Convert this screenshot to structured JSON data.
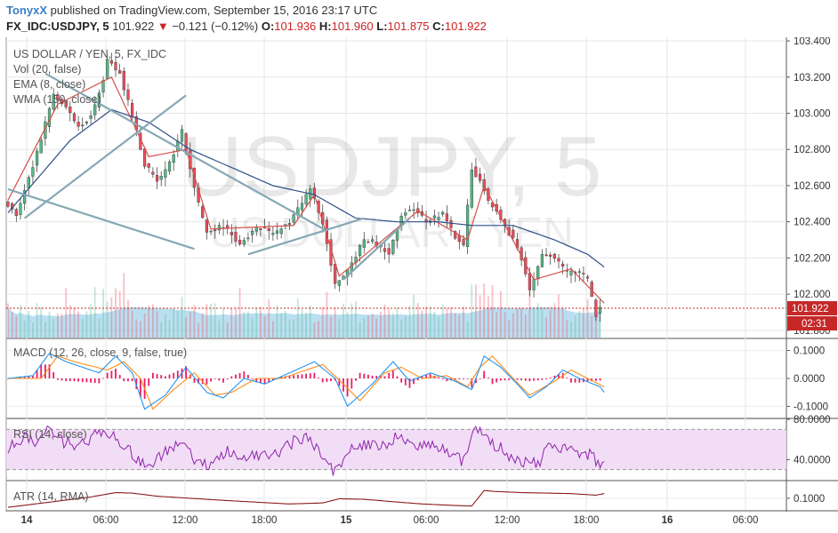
{
  "header": {
    "author": "TonyxX",
    "published_text": "published on TradingView.com, September 15, 2016 23:17 UTC",
    "symbol": "FX_IDC:USDJPY, 5",
    "last": "101.922",
    "change_arrow": "▼",
    "change": "−0.121 (−0.12%)",
    "open_label": "O:",
    "open": "101.936",
    "high_label": "H:",
    "high": "101.960",
    "low_label": "L:",
    "low": "101.875",
    "close_label": "C:",
    "close": "101.922"
  },
  "watermark": {
    "symbol": "USDJPY, 5",
    "name": "US DOLLAR / YEN"
  },
  "legend": {
    "title": "US DOLLAR / YEN, 5, FX_IDC",
    "vol": "Vol (20, false)",
    "ema": "EMA (8, close)",
    "wma": "WMA (150, close)"
  },
  "indicators": {
    "macd": "MACD (12, 26, close, 9, false, true)",
    "rsi": "RSI (14, close)",
    "atr": "ATR (14, RMA)"
  },
  "price_tag": {
    "value": "101.922",
    "countdown": "02:31"
  },
  "colors": {
    "up": "#53b987",
    "down": "#eb4d5c",
    "volume": "#8ec9ea",
    "ema": "#d5504b",
    "wma": "#2f4f88",
    "trend": "#85a8b4",
    "macd": "#2196f3",
    "signal": "#ff8c1a",
    "hist": "#e91e63",
    "rsi": "#8e24aa",
    "rsi_band": "#f1d9f5",
    "atr": "#8b1a1a",
    "last_price": "#c62828"
  },
  "chart_data": [
    {
      "type": "candlestick",
      "title": "US DOLLAR / YEN, 5, FX_IDC",
      "y_ticks": [
        "103.400",
        "103.200",
        "103.000",
        "102.800",
        "102.600",
        "102.400",
        "102.200",
        "102.000",
        "101.800"
      ],
      "ylim": [
        101.76,
        103.42
      ],
      "x_ticks": [
        "14",
        "06:00",
        "12:00",
        "18:00",
        "15",
        "06:00",
        "12:00",
        "18:00",
        "16",
        "06:00"
      ],
      "last_price": 101.922,
      "path": [
        [
          0,
          102.52
        ],
        [
          3,
          102.44
        ],
        [
          8,
          102.78
        ],
        [
          12,
          103.1
        ],
        [
          15,
          103.04
        ],
        [
          18,
          102.92
        ],
        [
          21,
          102.98
        ],
        [
          24,
          103.18
        ],
        [
          25,
          103.3
        ],
        [
          28,
          103.22
        ],
        [
          31,
          102.98
        ],
        [
          34,
          102.72
        ],
        [
          37,
          102.62
        ],
        [
          40,
          102.72
        ],
        [
          43,
          102.9
        ],
        [
          46,
          102.58
        ],
        [
          49,
          102.33
        ],
        [
          53,
          102.38
        ],
        [
          57,
          102.28
        ],
        [
          61,
          102.37
        ],
        [
          65,
          102.33
        ],
        [
          69,
          102.4
        ],
        [
          72,
          102.5
        ],
        [
          74,
          102.58
        ],
        [
          77,
          102.4
        ],
        [
          80,
          102.06
        ],
        [
          83,
          102.12
        ],
        [
          87,
          102.3
        ],
        [
          90,
          102.28
        ],
        [
          93,
          102.22
        ],
        [
          96,
          102.44
        ],
        [
          99,
          102.48
        ],
        [
          102,
          102.4
        ],
        [
          106,
          102.44
        ],
        [
          109,
          102.32
        ],
        [
          111,
          102.26
        ],
        [
          113,
          102.7
        ],
        [
          115,
          102.62
        ],
        [
          117,
          102.52
        ],
        [
          120,
          102.42
        ],
        [
          123,
          102.3
        ],
        [
          125,
          102.2
        ],
        [
          127,
          102.02
        ],
        [
          130,
          102.23
        ],
        [
          133,
          102.2
        ],
        [
          136,
          102.12
        ],
        [
          139,
          102.12
        ],
        [
          141,
          102.08
        ],
        [
          143,
          101.88
        ],
        [
          144,
          101.922
        ]
      ],
      "ema_path": [
        [
          0,
          102.52
        ],
        [
          12,
          103.05
        ],
        [
          25,
          103.2
        ],
        [
          34,
          102.76
        ],
        [
          43,
          102.8
        ],
        [
          49,
          102.36
        ],
        [
          69,
          102.38
        ],
        [
          74,
          102.55
        ],
        [
          80,
          102.1
        ],
        [
          99,
          102.46
        ],
        [
          111,
          102.3
        ],
        [
          115,
          102.6
        ],
        [
          127,
          102.08
        ],
        [
          136,
          102.14
        ],
        [
          144,
          101.95
        ]
      ],
      "wma_path": [
        [
          0,
          102.45
        ],
        [
          15,
          102.85
        ],
        [
          25,
          103.02
        ],
        [
          34,
          102.95
        ],
        [
          44,
          102.8
        ],
        [
          54,
          102.7
        ],
        [
          64,
          102.6
        ],
        [
          74,
          102.55
        ],
        [
          84,
          102.42
        ],
        [
          94,
          102.4
        ],
        [
          104,
          102.4
        ],
        [
          112,
          102.38
        ],
        [
          122,
          102.38
        ],
        [
          132,
          102.3
        ],
        [
          140,
          102.22
        ],
        [
          144,
          102.15
        ]
      ],
      "trendlines": [
        {
          "from": [
            0,
            102.58
          ],
          "to": [
            45,
            102.25
          ]
        },
        {
          "from": [
            4,
            102.42
          ],
          "to": [
            43,
            103.1
          ]
        },
        {
          "from": [
            9,
            103.22
          ],
          "to": [
            77,
            102.35
          ]
        },
        {
          "from": [
            58,
            102.22
          ],
          "to": [
            86,
            102.42
          ]
        },
        {
          "from": [
            81,
            102.08
          ],
          "to": [
            97,
            102.42
          ]
        }
      ]
    },
    {
      "type": "line",
      "title": "MACD (12, 26, close, 9, false, true)",
      "y_ticks": [
        "0.1000",
        "0.0000",
        "-0.1000"
      ],
      "ylim": [
        -0.14,
        0.14
      ],
      "macd_path": [
        [
          0,
          0.0
        ],
        [
          6,
          0.01
        ],
        [
          10,
          0.09
        ],
        [
          14,
          0.06
        ],
        [
          22,
          0.02
        ],
        [
          26,
          0.08
        ],
        [
          30,
          0.02
        ],
        [
          33,
          -0.11
        ],
        [
          38,
          -0.06
        ],
        [
          43,
          0.04
        ],
        [
          48,
          -0.05
        ],
        [
          52,
          -0.07
        ],
        [
          57,
          0.0
        ],
        [
          62,
          -0.02
        ],
        [
          68,
          0.02
        ],
        [
          74,
          0.06
        ],
        [
          79,
          0.0
        ],
        [
          82,
          -0.1
        ],
        [
          88,
          -0.02
        ],
        [
          93,
          0.06
        ],
        [
          97,
          -0.01
        ],
        [
          102,
          0.02
        ],
        [
          108,
          -0.01
        ],
        [
          112,
          -0.04
        ],
        [
          115,
          0.08
        ],
        [
          119,
          0.04
        ],
        [
          123,
          -0.02
        ],
        [
          126,
          -0.07
        ],
        [
          130,
          -0.03
        ],
        [
          134,
          0.03
        ],
        [
          138,
          0.0
        ],
        [
          143,
          -0.03
        ],
        [
          144,
          -0.05
        ]
      ],
      "signal_path": [
        [
          0,
          0.0
        ],
        [
          8,
          0.0
        ],
        [
          12,
          0.08
        ],
        [
          16,
          0.06
        ],
        [
          24,
          0.03
        ],
        [
          28,
          0.06
        ],
        [
          32,
          0.0
        ],
        [
          35,
          -0.11
        ],
        [
          40,
          -0.04
        ],
        [
          45,
          0.02
        ],
        [
          50,
          -0.06
        ],
        [
          54,
          -0.05
        ],
        [
          60,
          0.0
        ],
        [
          66,
          0.0
        ],
        [
          72,
          0.03
        ],
        [
          76,
          0.05
        ],
        [
          81,
          -0.02
        ],
        [
          85,
          -0.08
        ],
        [
          91,
          0.02
        ],
        [
          95,
          0.04
        ],
        [
          100,
          0.0
        ],
        [
          106,
          0.01
        ],
        [
          111,
          -0.03
        ],
        [
          114,
          0.04
        ],
        [
          117,
          0.08
        ],
        [
          122,
          0.0
        ],
        [
          126,
          -0.06
        ],
        [
          132,
          -0.01
        ],
        [
          136,
          0.03
        ],
        [
          140,
          0.0
        ],
        [
          144,
          -0.03
        ]
      ]
    },
    {
      "type": "line",
      "title": "RSI (14, close)",
      "y_ticks": [
        "80.0000",
        "40.0000"
      ],
      "ylim": [
        20,
        80
      ],
      "band": [
        30,
        70
      ],
      "rsi_path": [
        [
          0,
          50
        ],
        [
          4,
          62
        ],
        [
          7,
          56
        ],
        [
          10,
          72
        ],
        [
          13,
          58
        ],
        [
          17,
          54
        ],
        [
          21,
          64
        ],
        [
          24,
          68
        ],
        [
          27,
          58
        ],
        [
          31,
          42
        ],
        [
          34,
          30
        ],
        [
          38,
          48
        ],
        [
          42,
          60
        ],
        [
          45,
          38
        ],
        [
          49,
          34
        ],
        [
          53,
          48
        ],
        [
          57,
          40
        ],
        [
          61,
          46
        ],
        [
          65,
          44
        ],
        [
          69,
          58
        ],
        [
          73,
          62
        ],
        [
          76,
          40
        ],
        [
          79,
          28
        ],
        [
          83,
          50
        ],
        [
          87,
          56
        ],
        [
          91,
          52
        ],
        [
          94,
          64
        ],
        [
          98,
          52
        ],
        [
          102,
          56
        ],
        [
          106,
          48
        ],
        [
          110,
          38
        ],
        [
          113,
          70
        ],
        [
          116,
          58
        ],
        [
          119,
          52
        ],
        [
          122,
          40
        ],
        [
          125,
          38
        ],
        [
          128,
          36
        ],
        [
          131,
          56
        ],
        [
          134,
          52
        ],
        [
          138,
          44
        ],
        [
          141,
          46
        ],
        [
          143,
          30
        ],
        [
          144,
          40
        ]
      ]
    },
    {
      "type": "line",
      "title": "ATR (14, RMA)",
      "y_ticks": [
        "0.1000"
      ],
      "ylim": [
        0.055,
        0.165
      ],
      "atr_path": [
        [
          0,
          0.065
        ],
        [
          10,
          0.085
        ],
        [
          20,
          0.105
        ],
        [
          26,
          0.122
        ],
        [
          30,
          0.12
        ],
        [
          36,
          0.108
        ],
        [
          44,
          0.1
        ],
        [
          52,
          0.092
        ],
        [
          60,
          0.085
        ],
        [
          68,
          0.078
        ],
        [
          76,
          0.082
        ],
        [
          80,
          0.098
        ],
        [
          86,
          0.096
        ],
        [
          92,
          0.088
        ],
        [
          100,
          0.078
        ],
        [
          108,
          0.072
        ],
        [
          112,
          0.07
        ],
        [
          115,
          0.13
        ],
        [
          118,
          0.126
        ],
        [
          124,
          0.122
        ],
        [
          130,
          0.12
        ],
        [
          136,
          0.118
        ],
        [
          142,
          0.112
        ],
        [
          144,
          0.118
        ]
      ]
    }
  ]
}
